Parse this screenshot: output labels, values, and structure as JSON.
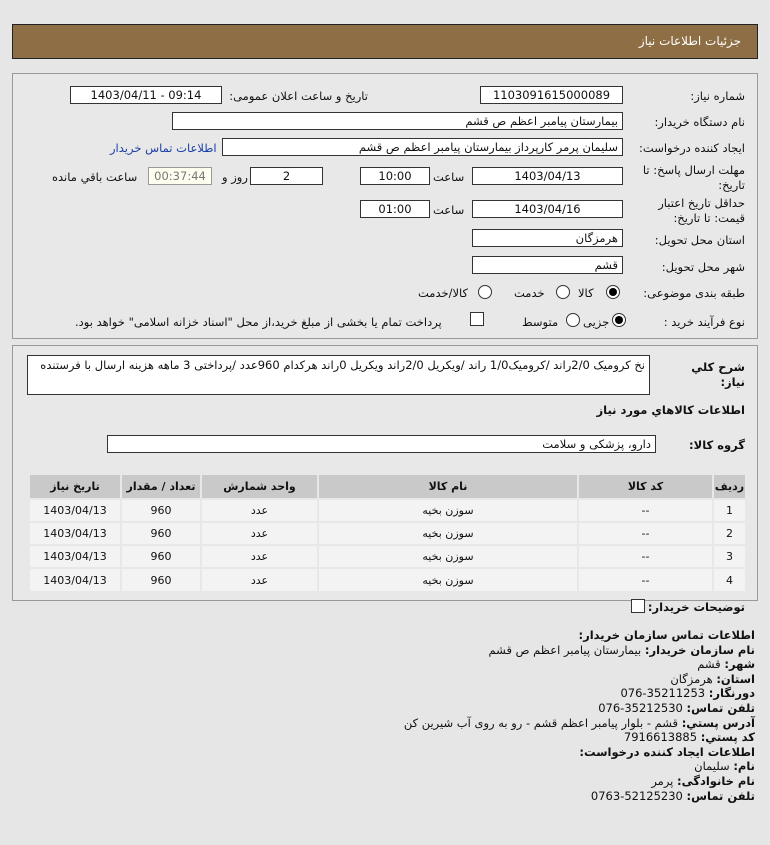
{
  "header": {
    "title": "جزئیات اطلاعات نیاز"
  },
  "form": {
    "need_number_label": "شماره نیاز:",
    "need_number": "1103091615000089",
    "announce_label": "تاریخ و ساعت اعلان عمومی:",
    "announce_value": "1403/04/11 - 09:14",
    "buyer_label": "نام دستگاه خریدار:",
    "buyer": "بیمارستان پیامبر اعظم  ص  قشم",
    "creator_label": "ایجاد کننده درخواست:",
    "creator": "سلیمان پرمر کارپرداز بیمارستان پیامبر اعظم  ص  قشم",
    "contact_link": "اطلاعات تماس خریدار",
    "deadline_label": "مهلت ارسال پاسخ: تا تاریخ:",
    "deadline_date": "1403/04/13",
    "time_label": "ساعت",
    "deadline_time": "10:00",
    "days": "2",
    "days_label": "روز و",
    "remaining": "00:37:44",
    "remaining_label": "ساعت باقي مانده",
    "validity_label": "حداقل تاریخ اعتبار قیمت: تا تاریخ:",
    "validity_date": "1403/04/16",
    "validity_time": "01:00",
    "province_label": "استان محل تحویل:",
    "province": "هرمزگان",
    "city_label": "شهر محل تحویل:",
    "city": "قشم",
    "category_label": "طبقه بندی موضوعی:",
    "category_options": [
      "کالا",
      "خدمت",
      "کالا/خدمت"
    ],
    "category_selected": "کالا",
    "process_label": "نوع فرآیند خرید :",
    "process_options": [
      "جزیی",
      "متوسط"
    ],
    "process_selected": "جزیی",
    "treasury_note": "پرداخت تمام یا بخشی از مبلغ خرید،از محل \"اسناد خزانه اسلامی\" خواهد بود."
  },
  "need": {
    "desc_label": "شرح کلي نياز:",
    "desc": "نخ کرومیک 2/0راند /کرومیک1/0 راند /ویکریل 2/0راند ویکریل 0راند هرکدام 960عدد /پرداختی 3 ماهه هزینه ارسال با فرستنده",
    "goods_title": "اطلاعات کالاهاي مورد نياز",
    "group_label": "گروه کالا:",
    "group": "دارو، پزشکی و سلامت",
    "table": {
      "headers": [
        "ردیف",
        "کد کالا",
        "نام کالا",
        "واحد شمارش",
        "تعداد / مقدار",
        "تاریخ نیاز"
      ],
      "rows": [
        [
          "1",
          "--",
          "سوزن بخیه",
          "عدد",
          "960",
          "1403/04/13"
        ],
        [
          "2",
          "--",
          "سوزن بخیه",
          "عدد",
          "960",
          "1403/04/13"
        ],
        [
          "3",
          "--",
          "سوزن بخیه",
          "عدد",
          "960",
          "1403/04/13"
        ],
        [
          "4",
          "--",
          "سوزن بخیه",
          "عدد",
          "960",
          "1403/04/13"
        ]
      ]
    },
    "buyer_notes_label": "توضیحات خریدار:"
  },
  "contact": {
    "title": "اطلاعات تماس سازمان خریدار:",
    "org_label": "نام سازمان خریدار:",
    "org": "بیمارستان پیامبر اعظم ص قشم",
    "city_label": "شهر:",
    "city": "قشم",
    "province_label": "استان:",
    "province": "هرمزگان",
    "fax_label": "دورنگار:",
    "fax": "076-35211253",
    "phone_label": "تلفن تماس:",
    "phone": "076-35212530",
    "address_label": "آدرس پستي:",
    "address": "قشم - بلوار پیامبر اعظم قشم - رو به روی آب شیرین کن",
    "postal_label": "کد پستي:",
    "postal": "7916613885",
    "creator_title": "اطلاعات ایجاد کننده درخواست:",
    "name_label": "نام:",
    "name": "سلیمان",
    "family_label": "نام خانوادگی:",
    "family": "پرمر",
    "cphone_label": "تلفن تماس:",
    "cphone": "0763-52125230"
  },
  "colors": {
    "header": "#8d6e45",
    "link": "#1a3fa8"
  }
}
